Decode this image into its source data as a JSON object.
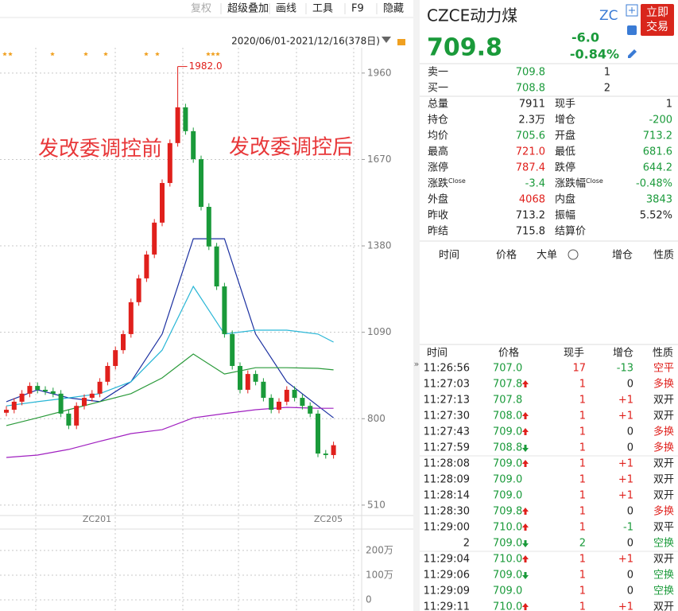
{
  "toolbar": [
    "复权",
    "超级叠加",
    "画线",
    "工具",
    "F9",
    "隐藏"
  ],
  "chart_data": {
    "type": "candlestick",
    "date_range": "2020/06/01-2021/12/16(378日)",
    "annotations": [
      "发改委调控前",
      "发改委调控后",
      "1982.0"
    ],
    "ylim": [
      475,
      2045
    ],
    "yticks": [
      1960,
      1670,
      1380,
      1090,
      800,
      510
    ],
    "grid": true,
    "up_color": "#e0201c",
    "down_color": "#1a9a3a",
    "xlabels": [
      "ZC201",
      "ZC205"
    ],
    "candles": [
      [
        820,
        842,
        808,
        830
      ],
      [
        830,
        869,
        818,
        857
      ],
      [
        857,
        896,
        845,
        884
      ],
      [
        884,
        922,
        872,
        910
      ],
      [
        910,
        922,
        885,
        897
      ],
      [
        897,
        909,
        880,
        892
      ],
      [
        892,
        904,
        872,
        884
      ],
      [
        884,
        896,
        805,
        817
      ],
      [
        817,
        829,
        765,
        777
      ],
      [
        777,
        855,
        765,
        843
      ],
      [
        843,
        882,
        831,
        870
      ],
      [
        870,
        896,
        858,
        884
      ],
      [
        884,
        936,
        872,
        924
      ],
      [
        924,
        989,
        912,
        977
      ],
      [
        977,
        1042,
        965,
        1030
      ],
      [
        1030,
        1096,
        1018,
        1084
      ],
      [
        1084,
        1203,
        1072,
        1191
      ],
      [
        1191,
        1283,
        1179,
        1271
      ],
      [
        1271,
        1363,
        1259,
        1351
      ],
      [
        1351,
        1470,
        1339,
        1458
      ],
      [
        1458,
        1603,
        1446,
        1591
      ],
      [
        1591,
        1737,
        1579,
        1725
      ],
      [
        1725,
        1982,
        1713,
        1845
      ],
      [
        1845,
        1857,
        1753,
        1765
      ],
      [
        1765,
        1777,
        1659,
        1671
      ],
      [
        1671,
        1683,
        1499,
        1511
      ],
      [
        1511,
        1523,
        1366,
        1378
      ],
      [
        1378,
        1390,
        1232,
        1244
      ],
      [
        1244,
        1256,
        1072,
        1084
      ],
      [
        1084,
        1096,
        965,
        977
      ],
      [
        977,
        989,
        885,
        897
      ],
      [
        897,
        962,
        885,
        950
      ],
      [
        950,
        962,
        912,
        924
      ],
      [
        924,
        936,
        858,
        870
      ],
      [
        870,
        882,
        818,
        830
      ],
      [
        830,
        869,
        818,
        857
      ],
      [
        857,
        909,
        845,
        897
      ],
      [
        897,
        909,
        858,
        870
      ],
      [
        870,
        882,
        831,
        843
      ],
      [
        843,
        855,
        805,
        817
      ],
      [
        817,
        829,
        671,
        683
      ],
      [
        683,
        695,
        666,
        678
      ],
      [
        678,
        723,
        666,
        711
      ]
    ],
    "ma": {
      "x": [
        0,
        4,
        8,
        12,
        16,
        20,
        24,
        28,
        32,
        36,
        40,
        42
      ],
      "series": [
        {
          "color": "#1a2fa0",
          "values": [
            857,
            897,
            870,
            857,
            924,
            1084,
            1404,
            1404,
            1084,
            924,
            843,
            803
          ]
        },
        {
          "color": "#29b6d6",
          "values": [
            843,
            857,
            870,
            884,
            924,
            1030,
            1244,
            1084,
            1097,
            1097,
            1084,
            1057
          ]
        },
        {
          "color": "#2a9a3a",
          "values": [
            777,
            803,
            830,
            857,
            884,
            937,
            1017,
            950,
            971,
            971,
            969,
            964
          ]
        },
        {
          "color": "#a020c0",
          "values": [
            670,
            678,
            697,
            724,
            750,
            763,
            803,
            817,
            830,
            838,
            835,
            835
          ]
        }
      ]
    },
    "volume": {
      "ylim": [
        0,
        2320000
      ],
      "yticks": [
        {
          "value": 2000000,
          "label": "200万"
        },
        {
          "value": 1000000,
          "label": "100万"
        },
        0
      ]
    }
  },
  "quote": {
    "name": "CZCE动力煤",
    "code": "ZC",
    "trade_button": [
      "立即",
      "交易"
    ],
    "price": "709.8",
    "change": "-6.0",
    "change_pct": "-0.84%",
    "book": [
      {
        "label": "卖一",
        "price": "709.8",
        "qty": "1"
      },
      {
        "label": "买一",
        "price": "708.8",
        "qty": "2"
      }
    ],
    "stats": [
      [
        {
          "label": "总量",
          "value": "7911",
          "color": "black"
        },
        {
          "label": "现手",
          "value": "1",
          "color": "black"
        }
      ],
      [
        {
          "label": "持仓",
          "value": "2.3万",
          "color": "black"
        },
        {
          "label": "增仓",
          "value": "-200",
          "color": "green"
        }
      ],
      [
        {
          "label": "均价",
          "value": "705.6",
          "color": "green"
        },
        {
          "label": "开盘",
          "value": "713.2",
          "color": "green"
        }
      ],
      [
        {
          "label": "最高",
          "value": "721.0",
          "color": "red"
        },
        {
          "label": "最低",
          "value": "681.6",
          "color": "green"
        }
      ],
      [
        {
          "label": "涨停",
          "value": "787.4",
          "color": "red"
        },
        {
          "label": "跌停",
          "value": "644.2",
          "color": "green"
        }
      ],
      [
        {
          "label": "涨跌",
          "sup": "Close",
          "value": "-3.4",
          "color": "green"
        },
        {
          "label": "涨跌幅",
          "sup": "Close",
          "value": "-0.48%",
          "color": "green"
        }
      ],
      [
        {
          "label": "外盘",
          "value": "4068",
          "color": "red"
        },
        {
          "label": "内盘",
          "value": "3843",
          "color": "green"
        }
      ],
      [
        {
          "label": "昨收",
          "value": "713.2",
          "color": "black"
        },
        {
          "label": "振幅",
          "value": "5.52%",
          "color": "black"
        }
      ],
      [
        {
          "label": "昨结",
          "value": "715.8",
          "color": "black"
        },
        {
          "label": "结算价"
        }
      ]
    ],
    "tick_headers": [
      "时间",
      "价格",
      "大单",
      "增仓",
      "性质"
    ],
    "trade_headers": [
      "时间",
      "价格",
      "现手",
      "增仓",
      "性质"
    ],
    "trades": [
      {
        "time": "11:26:56",
        "price": "707.0",
        "vol": "17",
        "vol_color": "red",
        "oi": "-13",
        "oi_color": "green",
        "kind": "空平",
        "kind_color": "red"
      },
      {
        "time": "11:27:03",
        "price": "707.8",
        "dir": "up",
        "vol": "1",
        "vol_color": "red",
        "oi": "0",
        "oi_color": "black",
        "kind": "多换",
        "kind_color": "red"
      },
      {
        "time": "11:27:13",
        "price": "707.8",
        "vol": "1",
        "vol_color": "red",
        "oi": "+1",
        "oi_color": "red",
        "kind": "双开",
        "kind_color": "black"
      },
      {
        "time": "11:27:30",
        "price": "708.0",
        "dir": "up",
        "vol": "1",
        "vol_color": "red",
        "oi": "+1",
        "oi_color": "red",
        "kind": "双开",
        "kind_color": "black"
      },
      {
        "time": "11:27:43",
        "price": "709.0",
        "dir": "up",
        "vol": "1",
        "vol_color": "red",
        "oi": "0",
        "oi_color": "black",
        "kind": "多换",
        "kind_color": "red"
      },
      {
        "time": "11:27:59",
        "price": "708.8",
        "dir": "down",
        "vol": "1",
        "vol_color": "red",
        "oi": "0",
        "oi_color": "black",
        "kind": "多换",
        "kind_color": "red"
      },
      {
        "time": "11:28:08",
        "price": "709.0",
        "dir": "up",
        "vol": "1",
        "vol_color": "red",
        "oi": "+1",
        "oi_color": "red",
        "kind": "双开",
        "kind_color": "black"
      },
      {
        "time": "11:28:09",
        "price": "709.0",
        "vol": "1",
        "vol_color": "red",
        "oi": "+1",
        "oi_color": "red",
        "kind": "双开",
        "kind_color": "black"
      },
      {
        "time": "11:28:14",
        "price": "709.0",
        "vol": "1",
        "vol_color": "red",
        "oi": "+1",
        "oi_color": "red",
        "kind": "双开",
        "kind_color": "black"
      },
      {
        "time": "11:28:30",
        "price": "709.8",
        "dir": "up",
        "vol": "1",
        "vol_color": "red",
        "oi": "0",
        "oi_color": "black",
        "kind": "多换",
        "kind_color": "red"
      },
      {
        "time": "11:29:00",
        "price": "710.0",
        "dir": "up",
        "vol": "1",
        "vol_color": "red",
        "oi": "-1",
        "oi_color": "green",
        "kind": "双平",
        "kind_color": "black"
      },
      {
        "time": "2",
        "price": "709.0",
        "dir": "down",
        "vol": "2",
        "vol_color": "green",
        "oi": "0",
        "oi_color": "black",
        "kind": "空换",
        "kind_color": "green"
      },
      {
        "time": "11:29:04",
        "price": "710.0",
        "dir": "up",
        "vol": "1",
        "vol_color": "red",
        "oi": "+1",
        "oi_color": "red",
        "kind": "双开",
        "kind_color": "black"
      },
      {
        "time": "11:29:06",
        "price": "709.0",
        "dir": "down",
        "vol": "1",
        "vol_color": "red",
        "oi": "0",
        "oi_color": "black",
        "kind": "空换",
        "kind_color": "green"
      },
      {
        "time": "11:29:09",
        "price": "709.0",
        "vol": "1",
        "vol_color": "red",
        "oi": "0",
        "oi_color": "black",
        "kind": "空换",
        "kind_color": "green"
      },
      {
        "time": "11:29:11",
        "price": "710.0",
        "dir": "up",
        "vol": "1",
        "vol_color": "red",
        "oi": "+1",
        "oi_color": "red",
        "kind": "双开",
        "kind_color": "black"
      }
    ]
  }
}
